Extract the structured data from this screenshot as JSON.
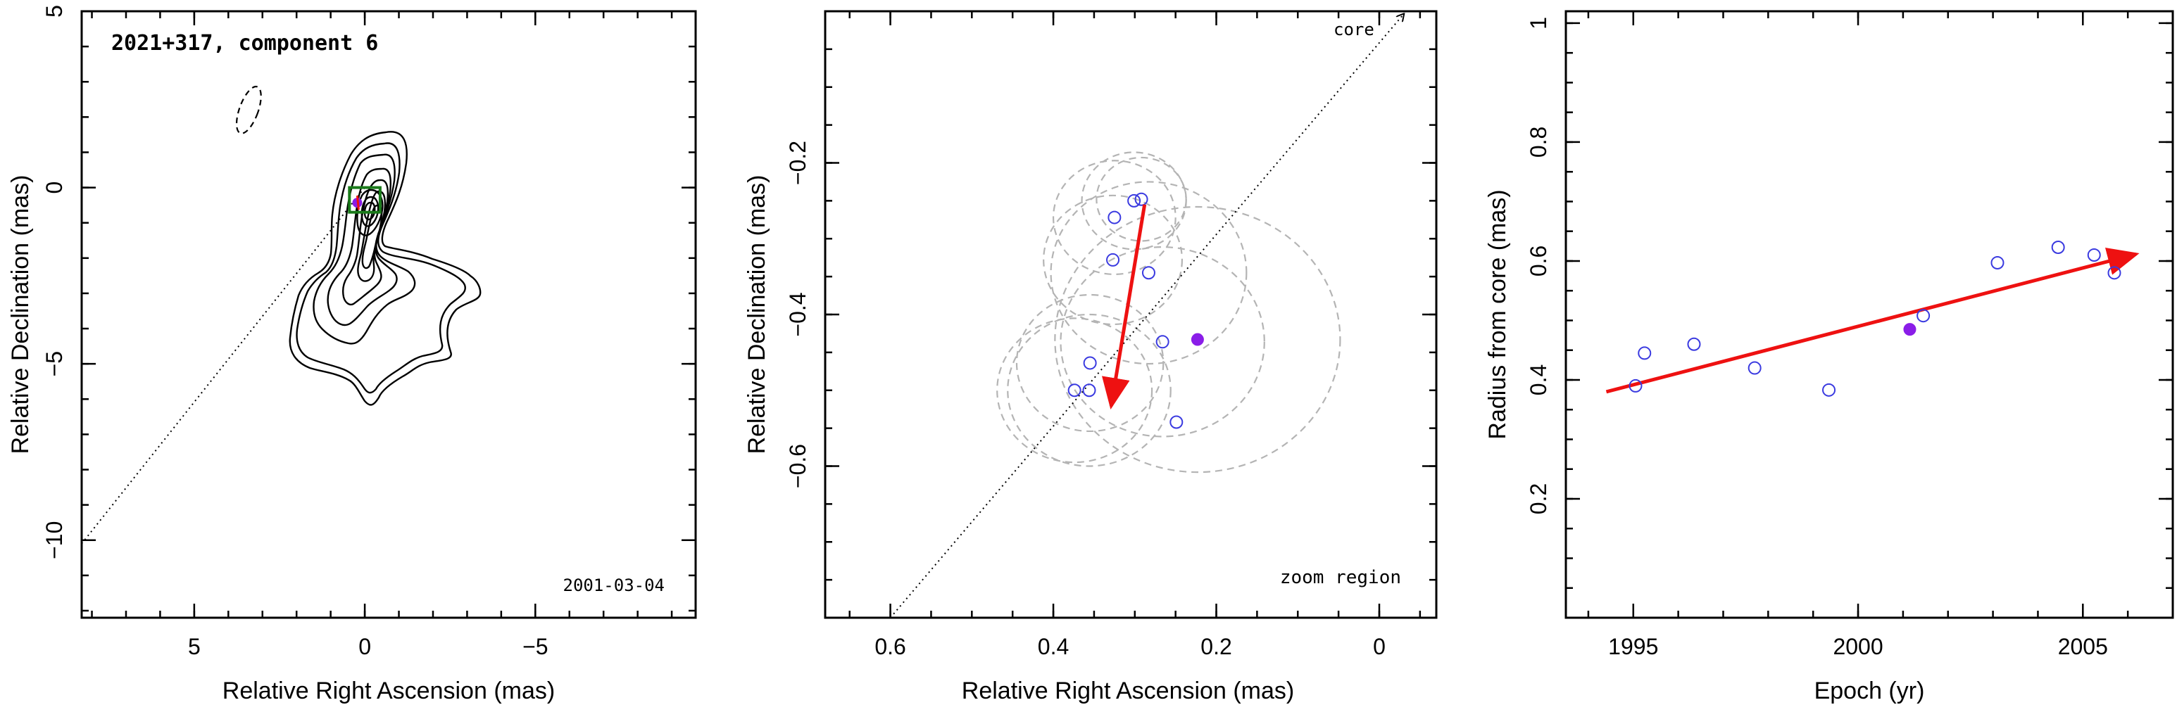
{
  "chart_data": [
    {
      "type": "contour",
      "title": "2021+317, component 6",
      "annotation": "2001-03-04",
      "xlabel": "Relative Right Ascension (mas)",
      "ylabel": "Relative Declination (mas)",
      "xlim": [
        8.3,
        -9.7
      ],
      "ylim": [
        -12.2,
        5
      ],
      "x_ticks": [
        5,
        0,
        -5
      ],
      "y_ticks": [
        5,
        0,
        -5,
        -10
      ],
      "x_tick_labels": [
        "5",
        "0",
        "−5"
      ],
      "y_tick_labels": [
        "5",
        "0",
        "−5",
        "−10"
      ],
      "core_line": {
        "x": [
          8.3,
          0
        ],
        "y": [
          -10.1,
          0
        ],
        "style": "dotted"
      },
      "beam": {
        "x": 3.4,
        "y": 2.2,
        "major": 1.4,
        "minor": 0.55,
        "pa_deg": -20
      },
      "zoom_box": {
        "x": [
          0.45,
          -0.45
        ],
        "y": [
          0.0,
          -0.7
        ]
      },
      "component": {
        "x": 0.22,
        "y": -0.43
      }
    },
    {
      "type": "scatter",
      "title": "",
      "xlabel": "Relative Right Ascension (mas)",
      "ylabel": "Relative Declination (mas)",
      "xlim": [
        0.68,
        -0.07
      ],
      "ylim": [
        -0.8,
        0.0
      ],
      "x_ticks": [
        0.6,
        0.4,
        0.2,
        0
      ],
      "y_ticks": [
        -0.2,
        -0.4,
        -0.6
      ],
      "x_tick_labels": [
        "0.6",
        "0.4",
        "0.2",
        "0"
      ],
      "y_tick_labels": [
        "−0.2",
        "−0.4",
        "−0.6"
      ],
      "annotations": [
        "core",
        "zoom region"
      ],
      "points": [
        {
          "x": 0.301,
          "y": -0.25
        },
        {
          "x": 0.292,
          "y": -0.248
        },
        {
          "x": 0.325,
          "y": -0.272
        },
        {
          "x": 0.327,
          "y": -0.328
        },
        {
          "x": 0.283,
          "y": -0.345
        },
        {
          "x": 0.266,
          "y": -0.436
        },
        {
          "x": 0.355,
          "y": -0.464
        },
        {
          "x": 0.374,
          "y": -0.5
        },
        {
          "x": 0.356,
          "y": -0.5
        },
        {
          "x": 0.249,
          "y": -0.542
        }
      ],
      "highlight_point": {
        "x": 0.223,
        "y": -0.433
      },
      "ellipses": [
        {
          "x": 0.301,
          "y": -0.25,
          "r": 0.064
        },
        {
          "x": 0.292,
          "y": -0.248,
          "r": 0.055
        },
        {
          "x": 0.325,
          "y": -0.272,
          "r": 0.075
        },
        {
          "x": 0.327,
          "y": -0.328,
          "r": 0.085
        },
        {
          "x": 0.283,
          "y": -0.345,
          "r": 0.12
        },
        {
          "x": 0.266,
          "y": -0.436,
          "r": 0.125
        },
        {
          "x": 0.355,
          "y": -0.464,
          "r": 0.09
        },
        {
          "x": 0.374,
          "y": -0.5,
          "r": 0.095
        },
        {
          "x": 0.356,
          "y": -0.5,
          "r": 0.1
        },
        {
          "x": 0.223,
          "y": -0.433,
          "r": 0.175
        }
      ],
      "motion_vector": {
        "x": [
          0.288,
          0.329
        ],
        "y": [
          -0.255,
          -0.53
        ]
      },
      "core_line": {
        "x": [
          0.6,
          -0.03
        ],
        "y": [
          -0.8,
          0.0
        ],
        "style": "dotted"
      }
    },
    {
      "type": "scatter",
      "title": "",
      "xlabel": "Epoch (yr)",
      "ylabel": "Radius from core (mas)",
      "xlim": [
        1993.5,
        2007.0
      ],
      "ylim": [
        0.0,
        1.02
      ],
      "x_ticks": [
        1995,
        2000,
        2005
      ],
      "y_ticks": [
        0.2,
        0.4,
        0.6,
        0.8,
        1
      ],
      "x_tick_labels": [
        "1995",
        "2000",
        "2005"
      ],
      "y_tick_labels": [
        "0.2",
        "0.4",
        "0.6",
        "0.8",
        "1"
      ],
      "points": [
        {
          "x": 1995.05,
          "y": 0.39
        },
        {
          "x": 1995.25,
          "y": 0.445
        },
        {
          "x": 1996.35,
          "y": 0.46
        },
        {
          "x": 1997.7,
          "y": 0.42
        },
        {
          "x": 1999.35,
          "y": 0.383
        },
        {
          "x": 2001.45,
          "y": 0.508
        },
        {
          "x": 2003.1,
          "y": 0.597
        },
        {
          "x": 2004.45,
          "y": 0.623
        },
        {
          "x": 2005.25,
          "y": 0.61
        },
        {
          "x": 2005.7,
          "y": 0.58
        }
      ],
      "highlight_point": {
        "x": 2001.15,
        "y": 0.485
      },
      "trend_arrow": {
        "x": [
          1994.4,
          2006.4
        ],
        "y": [
          0.38,
          0.615
        ]
      }
    }
  ],
  "colors": {
    "open_marker": "#3a3ae0",
    "filled_marker": "#8a1de8",
    "vector": "#ee1111",
    "ellipse": "#b4b4b4",
    "zoom_box": "#1a7a1a"
  }
}
